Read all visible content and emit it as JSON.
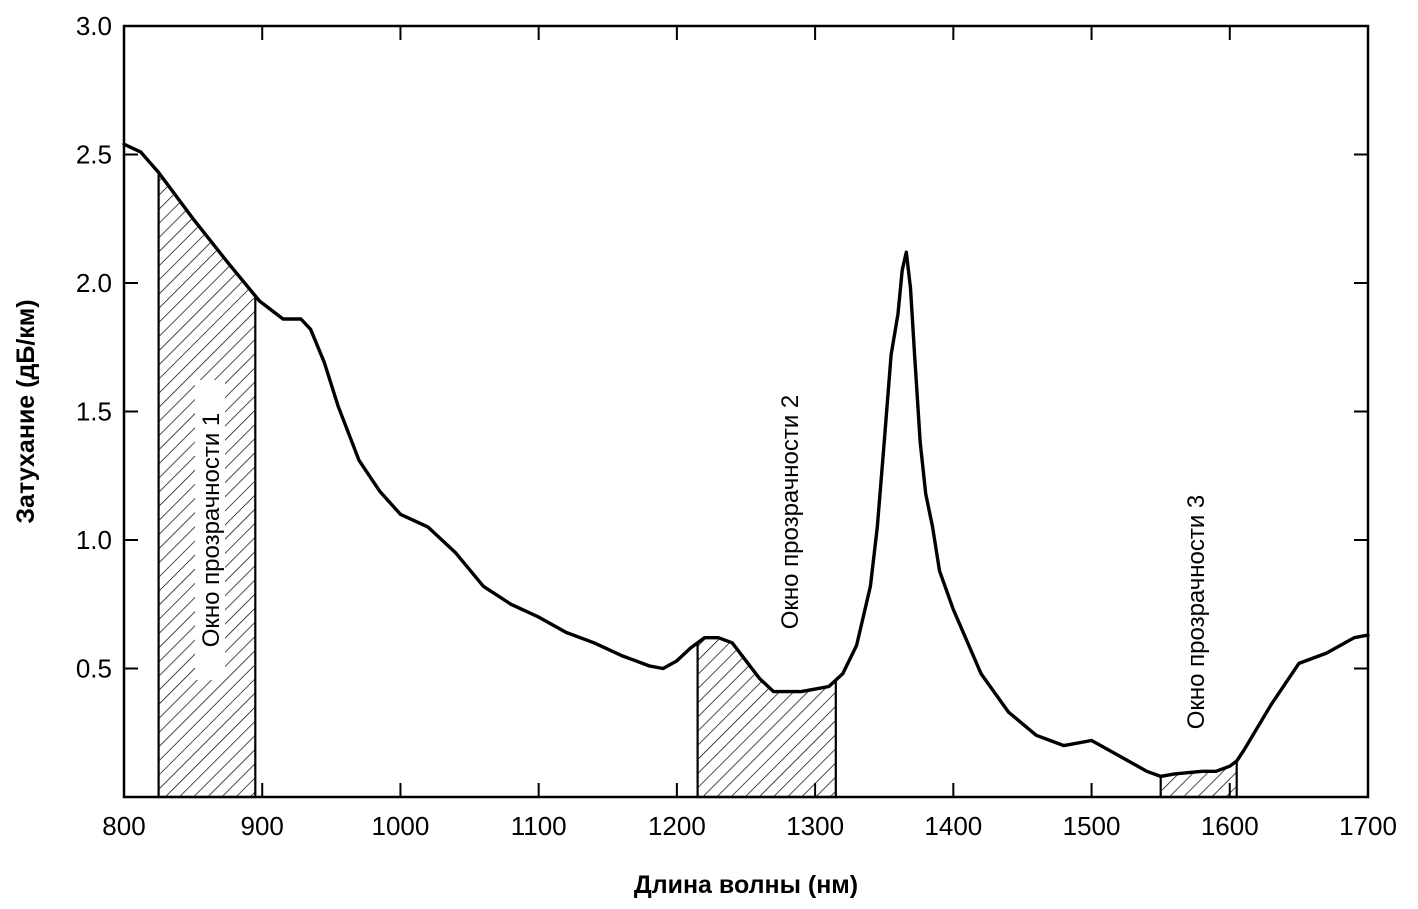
{
  "chart_data": {
    "type": "line",
    "title": "",
    "xlabel": "Длина волны (нм)",
    "ylabel": "Затухание (дБ/км)",
    "xlim": [
      800,
      1700
    ],
    "ylim": [
      0,
      3.0
    ],
    "x_ticks": [
      800,
      900,
      1000,
      1100,
      1200,
      1300,
      1400,
      1500,
      1600,
      1700
    ],
    "x_tick_labels": [
      "800",
      "900",
      "1000",
      "1100",
      "1200",
      "1300",
      "1400",
      "1500",
      "1600",
      "1700"
    ],
    "y_ticks": [
      0.5,
      1.0,
      1.5,
      2.0,
      2.5,
      3.0
    ],
    "y_tick_labels": [
      "0.5",
      "1.0",
      "1.5",
      "2.0",
      "2.5",
      "3.0"
    ],
    "grid": false,
    "legend": "none",
    "series": [
      {
        "x": [
          800,
          812,
          825,
          850,
          875,
          898,
          915,
          928,
          935,
          945,
          955,
          970,
          985,
          1000,
          1020,
          1040,
          1060,
          1080,
          1100,
          1120,
          1140,
          1160,
          1180,
          1190,
          1200,
          1210,
          1220,
          1230,
          1240,
          1250,
          1260,
          1270,
          1280,
          1290,
          1300,
          1310,
          1320,
          1330,
          1340,
          1345,
          1350,
          1355,
          1360,
          1363,
          1366,
          1369,
          1372,
          1376,
          1380,
          1385,
          1390,
          1400,
          1420,
          1440,
          1460,
          1480,
          1500,
          1520,
          1540,
          1550,
          1560,
          1580,
          1590,
          1600,
          1605,
          1610,
          1620,
          1630,
          1650,
          1670,
          1680,
          1690,
          1700
        ],
        "y": [
          2.54,
          2.51,
          2.43,
          2.25,
          2.08,
          1.93,
          1.86,
          1.86,
          1.82,
          1.69,
          1.52,
          1.31,
          1.19,
          1.1,
          1.05,
          0.95,
          0.82,
          0.75,
          0.7,
          0.64,
          0.6,
          0.55,
          0.51,
          0.5,
          0.53,
          0.58,
          0.62,
          0.62,
          0.6,
          0.53,
          0.46,
          0.41,
          0.41,
          0.41,
          0.42,
          0.43,
          0.48,
          0.59,
          0.82,
          1.05,
          1.38,
          1.72,
          1.88,
          2.05,
          2.12,
          1.98,
          1.72,
          1.38,
          1.18,
          1.05,
          0.88,
          0.73,
          0.48,
          0.33,
          0.24,
          0.2,
          0.22,
          0.16,
          0.1,
          0.08,
          0.09,
          0.1,
          0.1,
          0.12,
          0.14,
          0.18,
          0.27,
          0.36,
          0.52,
          0.56,
          0.59,
          0.62,
          0.63
        ]
      }
    ],
    "regions": [
      {
        "label": "Окно прозрачности 1",
        "x_start": 825,
        "x_end": 895
      },
      {
        "label": "Окно прозрачности 2",
        "x_start": 1215,
        "x_end": 1315
      },
      {
        "label": "Окно прозрачности 3",
        "x_start": 1550,
        "x_end": 1605
      }
    ]
  }
}
